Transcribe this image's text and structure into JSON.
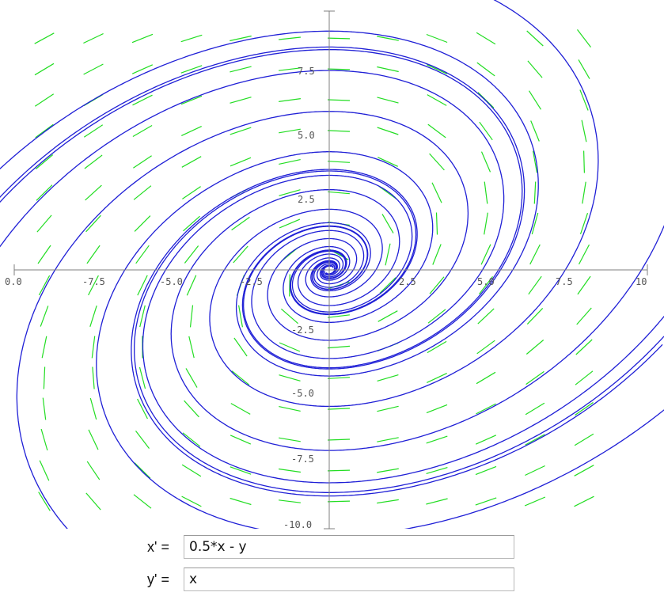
{
  "plot": {
    "colors": {
      "axis": "#7f7f7f",
      "field": "#22dd22",
      "trajectory": "#1f1fd6",
      "tick_text": "#555555"
    },
    "x_ticks": [
      "0.0",
      "-7.5",
      "-5.0",
      "-2.5",
      "2.5",
      "5.0",
      "7.5",
      "10"
    ],
    "y_ticks": [
      "7.5",
      "5.0",
      "2.5",
      "-2.5",
      "-5.0",
      "-7.5",
      "-10.0"
    ],
    "x_range": [
      -10,
      10
    ],
    "y_range": [
      -10,
      10
    ]
  },
  "system": {
    "x_label": "x' =",
    "x_value": "0.5*x - y",
    "y_label": "y' =",
    "y_value": "x"
  }
}
